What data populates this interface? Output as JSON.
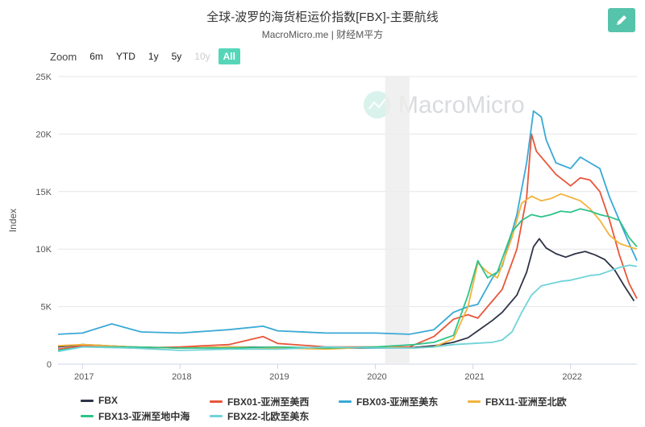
{
  "header": {
    "title": "全球-波罗的海货柜运价指数[FBX]-主要航线",
    "subtitle": "MacroMicro.me | 财经M平方",
    "edit_icon": "pencil-icon",
    "edit_color": "#56c3ab"
  },
  "zoom": {
    "label": "Zoom",
    "buttons": [
      {
        "label": "6m",
        "state": "normal"
      },
      {
        "label": "YTD",
        "state": "normal"
      },
      {
        "label": "1y",
        "state": "normal"
      },
      {
        "label": "5y",
        "state": "normal"
      },
      {
        "label": "10y",
        "state": "disabled"
      },
      {
        "label": "All",
        "state": "active"
      }
    ]
  },
  "watermark": {
    "text": "MacroMicro",
    "icon": "macromicro-logo-icon"
  },
  "chart_data": {
    "type": "line",
    "title": "全球-波罗的海货柜运价指数[FBX]-主要航线",
    "subtitle": "MacroMicro.me | 财经M平方",
    "ylabel": "Index",
    "xlabel": "",
    "ylim": [
      0,
      25000
    ],
    "xlim": [
      2016.75,
      2022.68
    ],
    "y_ticks": [
      0,
      5000,
      10000,
      15000,
      20000,
      25000
    ],
    "y_tick_labels": [
      "0",
      "5K",
      "10K",
      "15K",
      "20K",
      "25K"
    ],
    "x_ticks": [
      2017,
      2018,
      2019,
      2020,
      2021,
      2022
    ],
    "x_tick_labels": [
      "2017",
      "2018",
      "2019",
      "2020",
      "2021",
      "2022"
    ],
    "shaded_region": [
      2020.1,
      2020.35
    ],
    "grid": "horizontal",
    "legend_position": "bottom",
    "series": [
      {
        "name": "FBX",
        "color": "#2e3347",
        "points": [
          [
            2016.75,
            1500
          ],
          [
            2017.0,
            1700
          ],
          [
            2017.5,
            1500
          ],
          [
            2018.0,
            1400
          ],
          [
            2018.5,
            1500
          ],
          [
            2019.0,
            1450
          ],
          [
            2019.5,
            1400
          ],
          [
            2020.0,
            1400
          ],
          [
            2020.4,
            1450
          ],
          [
            2020.6,
            1600
          ],
          [
            2020.8,
            1900
          ],
          [
            2020.95,
            2300
          ],
          [
            2021.05,
            2900
          ],
          [
            2021.2,
            3800
          ],
          [
            2021.3,
            4500
          ],
          [
            2021.45,
            6000
          ],
          [
            2021.55,
            8000
          ],
          [
            2021.62,
            10200
          ],
          [
            2021.68,
            10900
          ],
          [
            2021.75,
            10100
          ],
          [
            2021.85,
            9600
          ],
          [
            2021.95,
            9300
          ],
          [
            2022.05,
            9600
          ],
          [
            2022.15,
            9800
          ],
          [
            2022.25,
            9500
          ],
          [
            2022.35,
            9100
          ],
          [
            2022.45,
            8200
          ],
          [
            2022.55,
            6800
          ],
          [
            2022.65,
            5500
          ]
        ]
      },
      {
        "name": "FBX01-亚洲至美西",
        "color": "#e8563a",
        "points": [
          [
            2016.75,
            1300
          ],
          [
            2017.0,
            1600
          ],
          [
            2017.5,
            1400
          ],
          [
            2018.0,
            1500
          ],
          [
            2018.5,
            1700
          ],
          [
            2018.85,
            2400
          ],
          [
            2019.0,
            1800
          ],
          [
            2019.5,
            1500
          ],
          [
            2020.0,
            1500
          ],
          [
            2020.35,
            1500
          ],
          [
            2020.6,
            2400
          ],
          [
            2020.8,
            3900
          ],
          [
            2020.95,
            4300
          ],
          [
            2021.05,
            4000
          ],
          [
            2021.2,
            5500
          ],
          [
            2021.3,
            6500
          ],
          [
            2021.45,
            10000
          ],
          [
            2021.55,
            14500
          ],
          [
            2021.6,
            20000
          ],
          [
            2021.65,
            18500
          ],
          [
            2021.75,
            17500
          ],
          [
            2021.85,
            16500
          ],
          [
            2022.0,
            15500
          ],
          [
            2022.1,
            16200
          ],
          [
            2022.2,
            16000
          ],
          [
            2022.3,
            15000
          ],
          [
            2022.4,
            12500
          ],
          [
            2022.5,
            9500
          ],
          [
            2022.6,
            7000
          ],
          [
            2022.68,
            5700
          ]
        ]
      },
      {
        "name": "FBX03-亚洲至美东",
        "color": "#3aa9d6",
        "points": [
          [
            2016.75,
            2600
          ],
          [
            2017.0,
            2700
          ],
          [
            2017.3,
            3500
          ],
          [
            2017.6,
            2800
          ],
          [
            2018.0,
            2700
          ],
          [
            2018.5,
            3000
          ],
          [
            2018.85,
            3300
          ],
          [
            2019.0,
            2900
          ],
          [
            2019.5,
            2700
          ],
          [
            2020.0,
            2700
          ],
          [
            2020.35,
            2600
          ],
          [
            2020.6,
            3000
          ],
          [
            2020.8,
            4500
          ],
          [
            2020.95,
            5000
          ],
          [
            2021.05,
            5200
          ],
          [
            2021.2,
            7500
          ],
          [
            2021.3,
            8500
          ],
          [
            2021.45,
            13000
          ],
          [
            2021.55,
            17500
          ],
          [
            2021.62,
            22000
          ],
          [
            2021.7,
            21500
          ],
          [
            2021.75,
            19500
          ],
          [
            2021.85,
            17500
          ],
          [
            2022.0,
            17000
          ],
          [
            2022.1,
            18000
          ],
          [
            2022.2,
            17500
          ],
          [
            2022.3,
            17000
          ],
          [
            2022.4,
            14500
          ],
          [
            2022.5,
            12500
          ],
          [
            2022.6,
            10500
          ],
          [
            2022.68,
            9000
          ]
        ]
      },
      {
        "name": "FBX11-亚洲至北欧",
        "color": "#f3b33c",
        "points": [
          [
            2016.75,
            1600
          ],
          [
            2017.0,
            1700
          ],
          [
            2017.5,
            1500
          ],
          [
            2018.0,
            1400
          ],
          [
            2018.5,
            1500
          ],
          [
            2019.0,
            1400
          ],
          [
            2019.5,
            1300
          ],
          [
            2020.0,
            1500
          ],
          [
            2020.4,
            1400
          ],
          [
            2020.6,
            1500
          ],
          [
            2020.8,
            2200
          ],
          [
            2020.95,
            5000
          ],
          [
            2021.05,
            8800
          ],
          [
            2021.15,
            8000
          ],
          [
            2021.25,
            7500
          ],
          [
            2021.4,
            11000
          ],
          [
            2021.5,
            14000
          ],
          [
            2021.6,
            14600
          ],
          [
            2021.7,
            14200
          ],
          [
            2021.8,
            14400
          ],
          [
            2021.9,
            14800
          ],
          [
            2022.0,
            14500
          ],
          [
            2022.1,
            14200
          ],
          [
            2022.2,
            13500
          ],
          [
            2022.3,
            12500
          ],
          [
            2022.4,
            11200
          ],
          [
            2022.5,
            10500
          ],
          [
            2022.6,
            10200
          ],
          [
            2022.68,
            10000
          ]
        ]
      },
      {
        "name": "FBX13-亚洲至地中海",
        "color": "#2ec38a",
        "points": [
          [
            2016.75,
            1200
          ],
          [
            2017.0,
            1500
          ],
          [
            2017.5,
            1500
          ],
          [
            2018.0,
            1400
          ],
          [
            2018.5,
            1400
          ],
          [
            2019.0,
            1500
          ],
          [
            2019.5,
            1400
          ],
          [
            2020.0,
            1500
          ],
          [
            2020.4,
            1700
          ],
          [
            2020.6,
            1900
          ],
          [
            2020.8,
            2500
          ],
          [
            2020.95,
            6000
          ],
          [
            2021.05,
            9000
          ],
          [
            2021.15,
            7500
          ],
          [
            2021.25,
            8000
          ],
          [
            2021.4,
            11500
          ],
          [
            2021.5,
            12500
          ],
          [
            2021.6,
            13000
          ],
          [
            2021.7,
            12800
          ],
          [
            2021.8,
            13000
          ],
          [
            2021.9,
            13300
          ],
          [
            2022.0,
            13200
          ],
          [
            2022.1,
            13500
          ],
          [
            2022.2,
            13300
          ],
          [
            2022.3,
            13000
          ],
          [
            2022.4,
            12800
          ],
          [
            2022.5,
            12500
          ],
          [
            2022.6,
            11000
          ],
          [
            2022.68,
            10200
          ]
        ]
      },
      {
        "name": "FBX22-北欧至美东",
        "color": "#6fd3d8",
        "points": [
          [
            2016.75,
            1100
          ],
          [
            2017.0,
            1500
          ],
          [
            2017.5,
            1400
          ],
          [
            2018.0,
            1200
          ],
          [
            2018.5,
            1300
          ],
          [
            2019.0,
            1300
          ],
          [
            2019.5,
            1500
          ],
          [
            2020.0,
            1400
          ],
          [
            2020.4,
            1400
          ],
          [
            2020.6,
            1500
          ],
          [
            2020.8,
            1700
          ],
          [
            2021.0,
            1800
          ],
          [
            2021.2,
            1900
          ],
          [
            2021.3,
            2100
          ],
          [
            2021.4,
            2800
          ],
          [
            2021.5,
            4500
          ],
          [
            2021.6,
            6000
          ],
          [
            2021.7,
            6800
          ],
          [
            2021.8,
            7000
          ],
          [
            2021.9,
            7200
          ],
          [
            2022.0,
            7300
          ],
          [
            2022.1,
            7500
          ],
          [
            2022.2,
            7700
          ],
          [
            2022.3,
            7800
          ],
          [
            2022.4,
            8100
          ],
          [
            2022.5,
            8400
          ],
          [
            2022.6,
            8600
          ],
          [
            2022.68,
            8500
          ]
        ]
      }
    ]
  }
}
